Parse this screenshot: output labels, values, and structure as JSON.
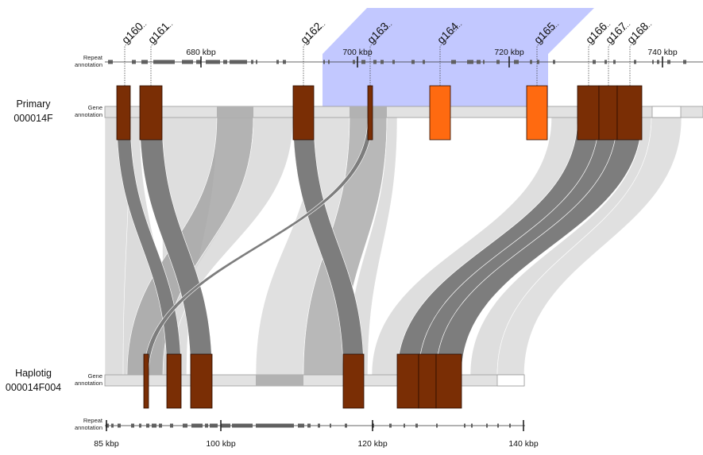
{
  "primary": {
    "name": "Primary",
    "id": "000014F",
    "repeat_label_1": "Repeat",
    "repeat_label_2": "annotation",
    "gene_label_1": "Gene",
    "gene_label_2": "annotation",
    "ticks": [
      "680 kbp",
      "700 kbp",
      "720 kbp",
      "740 kbp"
    ]
  },
  "haplotig": {
    "name": "Haplotig",
    "id": "000014F004",
    "repeat_label_1": "Repeat",
    "repeat_label_2": "annotation",
    "gene_label_1": "Gene",
    "gene_label_2": "annotation",
    "ticks": [
      "85 kbp",
      "100 kbp",
      "120 kbp",
      "140 kbp"
    ]
  },
  "genes": [
    {
      "label": "g160",
      "status": "aligned"
    },
    {
      "label": "g161",
      "status": "aligned"
    },
    {
      "label": "g162",
      "status": "aligned"
    },
    {
      "label": "g163",
      "status": "aligned"
    },
    {
      "label": "g164",
      "status": "unaligned"
    },
    {
      "label": "g165",
      "status": "unaligned"
    },
    {
      "label": "g166",
      "status": "aligned"
    },
    {
      "label": "g167",
      "status": "aligned"
    },
    {
      "label": "g168",
      "status": "aligned"
    }
  ],
  "colors": {
    "gene_aligned": "#7a2e05",
    "gene_unaligned": "#ff6a10",
    "highlight_region": "#b7beff",
    "ribbon_gene": "#7d7d7d",
    "ribbon_mid": "#a6a6a6",
    "ribbon_light": "#dadada",
    "repeat_block": "#606060"
  }
}
